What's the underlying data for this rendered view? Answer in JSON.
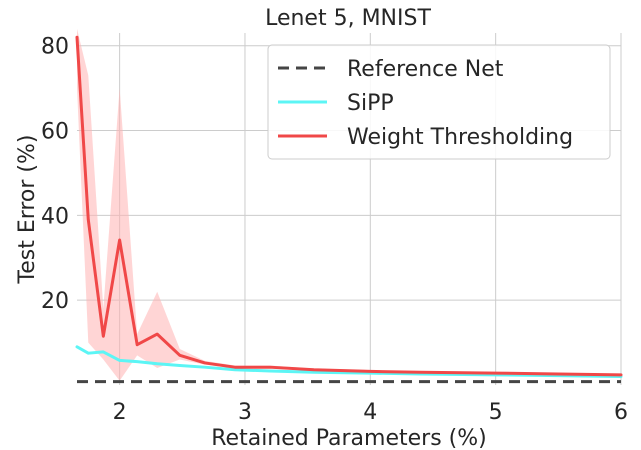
{
  "chart_data": {
    "type": "line",
    "title": "Lenet 5, MNIST",
    "xlabel": "Retained Parameters (%)",
    "ylabel": "Test Error (%)",
    "xlim": [
      1.66,
      6.0
    ],
    "ylim": [
      0.0,
      83.0
    ],
    "x_ticks": [
      2,
      3,
      4,
      5,
      6
    ],
    "x_tick_labels": [
      "2",
      "3",
      "4",
      "5",
      "6"
    ],
    "y_ticks": [
      20,
      40,
      60,
      80
    ],
    "y_tick_labels": [
      "20",
      "40",
      "60",
      "80"
    ],
    "grid": true,
    "legend_position": "top-right",
    "series": [
      {
        "name": "Reference Net",
        "style": "dashed",
        "color": "#454545",
        "x": [
          1.66,
          6.0
        ],
        "y": [
          0.8,
          0.8
        ]
      },
      {
        "name": "SiPP",
        "style": "solid",
        "color": "#5cf5f5",
        "x": [
          1.66,
          1.75,
          1.87,
          2.0,
          2.14,
          2.3,
          2.48,
          2.68,
          2.92,
          3.2,
          3.55,
          4.0,
          4.4,
          5.0,
          5.5,
          6.0
        ],
        "y": [
          9.0,
          7.5,
          7.8,
          5.8,
          5.5,
          5.0,
          4.6,
          4.2,
          3.6,
          3.3,
          3.0,
          2.8,
          2.6,
          2.4,
          2.2,
          2.0
        ]
      },
      {
        "name": "Weight Thresholding",
        "style": "solid",
        "color": "#f04848",
        "x": [
          1.66,
          1.75,
          1.87,
          2.0,
          2.14,
          2.3,
          2.48,
          2.68,
          2.92,
          3.2,
          3.55,
          4.0,
          4.4,
          5.0,
          5.5,
          6.0
        ],
        "y": [
          82.0,
          39.0,
          11.5,
          34.2,
          9.5,
          12.0,
          7.0,
          5.2,
          4.2,
          4.2,
          3.6,
          3.2,
          3.0,
          2.8,
          2.6,
          2.4
        ],
        "band_lower": [
          70.0,
          10.0,
          6.0,
          1.0,
          7.0,
          4.0,
          6.0,
          4.8,
          3.9,
          3.9,
          3.4,
          3.0,
          2.8,
          2.6,
          2.4,
          2.2
        ],
        "band_upper": [
          84.0,
          73.0,
          18.0,
          70.0,
          12.0,
          22.0,
          8.5,
          5.7,
          4.6,
          4.6,
          3.9,
          3.5,
          3.2,
          3.0,
          2.8,
          2.6
        ],
        "band_color": "#ffb3b3"
      }
    ]
  }
}
